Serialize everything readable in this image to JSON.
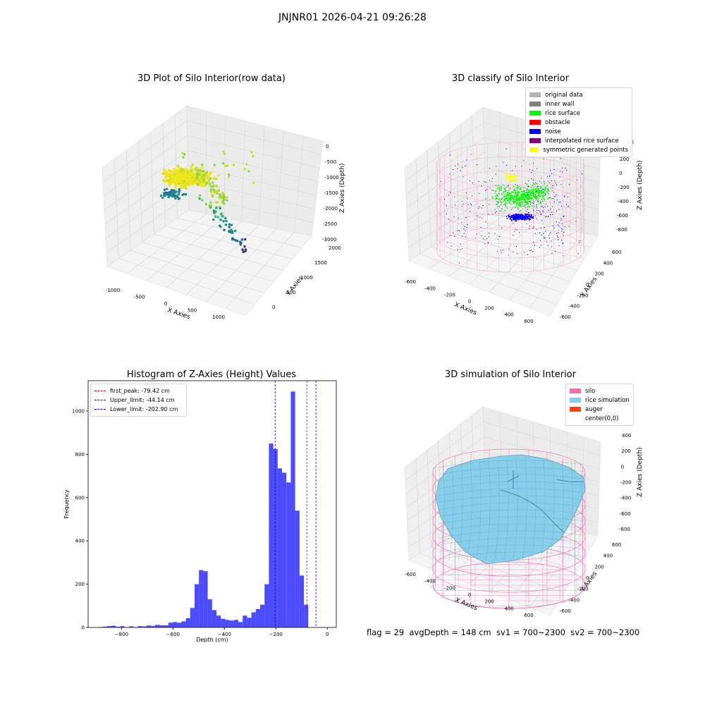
{
  "figure": {
    "suptitle": "JNJNR01 2026-04-21 09:26:28",
    "footer": "flag = 29  avgDepth = 148 cm  sv1 = 700~2300  sv2 = 700~2300"
  },
  "chart_data": [
    {
      "type": "scatter",
      "projection": "3d",
      "title": "3D Plot of Silo Interior(row data)",
      "xlabel": "X Axies",
      "ylabel": "Y Axies",
      "zlabel": "Z Axies (Depth)",
      "xticks": [
        "-1000",
        "-500",
        "0",
        "500",
        "1000"
      ],
      "yticks": [
        "0",
        "500",
        "1000",
        "1500",
        "2000"
      ],
      "zticks": [
        "0",
        "-500",
        "-1000",
        "-1500",
        "-2000",
        "-2500",
        "-3000"
      ],
      "xlim": [
        -1200,
        1400
      ],
      "ylim": [
        -200,
        2100
      ],
      "zlim": [
        -3000,
        0
      ],
      "colormap": "viridis",
      "cluster_colors": [
        "#f0e51a",
        "#c8df2a",
        "#8cd24a",
        "#3cb46c",
        "#21918c",
        "#2c728e",
        "#443a83"
      ],
      "grid": true
    },
    {
      "type": "scatter",
      "projection": "3d",
      "title": "3D classify of Silo Interior",
      "xlabel": "X Axies",
      "ylabel": "Y Axies",
      "zlabel": "Z Axies (Depth)",
      "xticks": [
        "-600",
        "-400",
        "-200",
        "0",
        "200",
        "400",
        "600"
      ],
      "yticks": [
        "-600",
        "-400",
        "-200",
        "0",
        "200",
        "400",
        "600"
      ],
      "zticks": [
        "200",
        "0",
        "-200",
        "-400",
        "-600",
        "-800"
      ],
      "zlim": [
        -900,
        300
      ],
      "legend": [
        {
          "label": "original data",
          "color": "#b3b3b3"
        },
        {
          "label": "inner wall",
          "color": "#808080"
        },
        {
          "label": "rice surface",
          "color": "#00ff00"
        },
        {
          "label": "obstacle",
          "color": "#ff0000"
        },
        {
          "label": "noise",
          "color": "#0000ff"
        },
        {
          "label": "interpolated rice surface",
          "color": "#800080"
        },
        {
          "label": "symmetric generated points",
          "color": "#ffff00"
        }
      ],
      "legend_loc": "top-right",
      "partial_tick_above_legend": "00",
      "grid": true
    },
    {
      "type": "bar",
      "title": "Histogram of Z-Axies (Height) Values",
      "xlabel": "Depth (cm)",
      "ylabel": "Frequency",
      "xlim": [
        -930,
        35
      ],
      "ylim": [
        0,
        1140
      ],
      "xticks": [
        -800,
        -600,
        -400,
        -200,
        0
      ],
      "yticks": [
        0,
        200,
        400,
        600,
        800,
        1000
      ],
      "bin_width": 17,
      "bar_color": "#0000ff",
      "bins_start": [
        -890,
        -873,
        -856,
        -839,
        -822,
        -805,
        -788,
        -771,
        -754,
        -737,
        -720,
        -703,
        -686,
        -669,
        -652,
        -635,
        -618,
        -601,
        -584,
        -567,
        -550,
        -533,
        -516,
        -499,
        -482,
        -465,
        -448,
        -431,
        -414,
        -397,
        -380,
        -363,
        -346,
        -329,
        -312,
        -295,
        -278,
        -261,
        -244,
        -227,
        -210,
        -193,
        -176,
        -159,
        -142,
        -125,
        -108,
        -91,
        -74,
        -57,
        -40,
        -23
      ],
      "values": [
        2,
        4,
        6,
        8,
        3,
        6,
        2,
        5,
        2,
        6,
        5,
        9,
        7,
        12,
        10,
        10,
        22,
        25,
        22,
        28,
        43,
        90,
        200,
        265,
        260,
        130,
        80,
        55,
        40,
        35,
        32,
        35,
        25,
        55,
        45,
        70,
        85,
        105,
        200,
        850,
        825,
        735,
        715,
        670,
        1090,
        540,
        240,
        105,
        0,
        0,
        0,
        0
      ],
      "vlines": [
        {
          "label": "first_peak: -79.42 cm",
          "x": -79.42,
          "color": "#ff0000"
        },
        {
          "label": "Upper_limit: -44.14 cm",
          "x": -44.14,
          "color": "#0000ff"
        },
        {
          "label": "Lower_limit: -202.90 cm",
          "x": -202.9,
          "color": "#0000ff"
        }
      ],
      "legend_loc": "top-left",
      "grid": false
    },
    {
      "type": "surface",
      "projection": "3d",
      "title": "3D simulation of Silo Interior",
      "xlabel": "X Axies",
      "ylabel": "Y Axies",
      "zlabel": "Z Axies (Depth)",
      "xticks": [
        "-600",
        "-400",
        "-200",
        "0",
        "200",
        "400",
        "600"
      ],
      "yticks": [
        "-600",
        "-400",
        "-200",
        "0",
        "200",
        "400",
        "600"
      ],
      "zticks": [
        "400",
        "200",
        "0",
        "-200",
        "-400",
        "-600",
        "-800"
      ],
      "legend": [
        {
          "label": "silo",
          "color": "#ff69b4"
        },
        {
          "label": "rice simulation",
          "color": "#87ceeb"
        },
        {
          "label": "auger",
          "color": "#ff4500"
        },
        {
          "label": "center(0,0)",
          "color": "#ffffff"
        }
      ],
      "legend_loc": "top-right",
      "grid": true
    }
  ]
}
